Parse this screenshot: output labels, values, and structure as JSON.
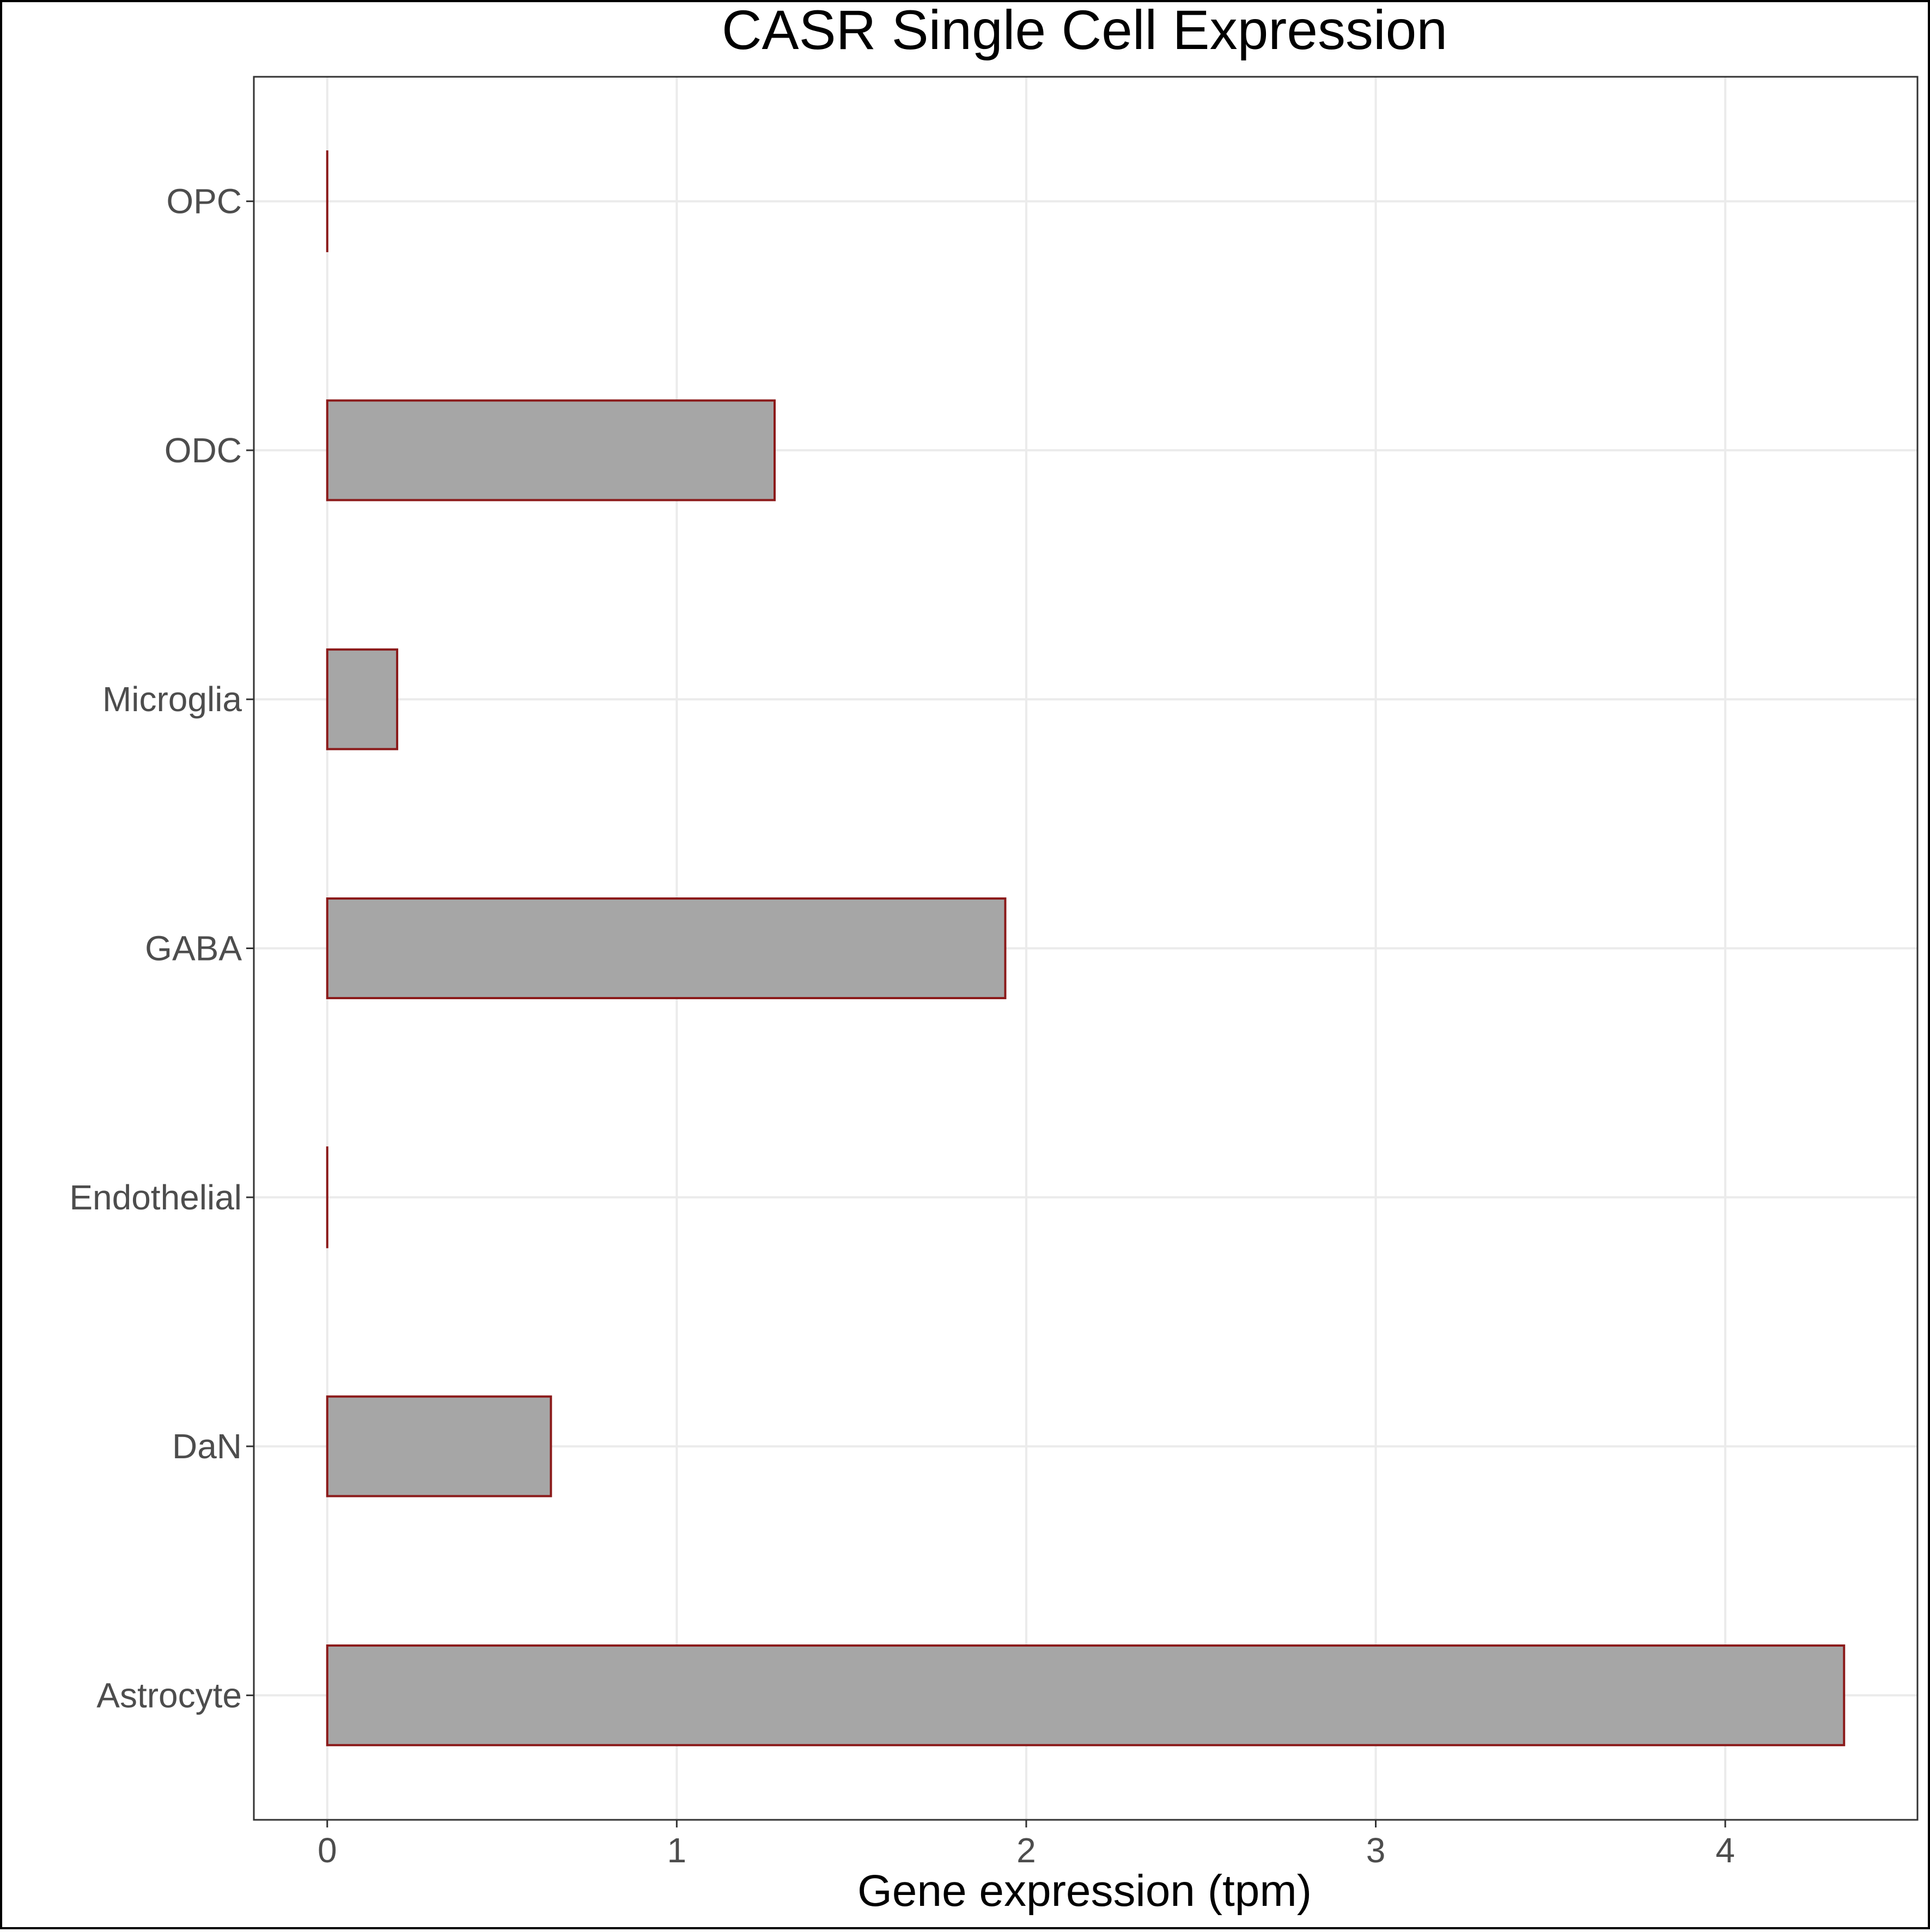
{
  "chart_data": {
    "type": "bar",
    "orientation": "horizontal",
    "title": "CASR Single Cell Expression",
    "xlabel": "Gene expression (tpm)",
    "ylabel": "",
    "categories": [
      "Astrocyte",
      "DaN",
      "Endothelial",
      "GABA",
      "Microglia",
      "ODC",
      "OPC"
    ],
    "values": [
      4.34,
      0.64,
      0.0,
      1.94,
      0.2,
      1.28,
      0.0
    ],
    "xlim": [
      -0.21,
      4.55
    ],
    "xticks": [
      0,
      1,
      2,
      3,
      4
    ],
    "grid": true,
    "legend": "none",
    "colors": {
      "bar_fill": "#a6a6a6",
      "bar_stroke": "#8b1a1a",
      "grid": "#ebebeb",
      "background": "#ffffff"
    }
  }
}
